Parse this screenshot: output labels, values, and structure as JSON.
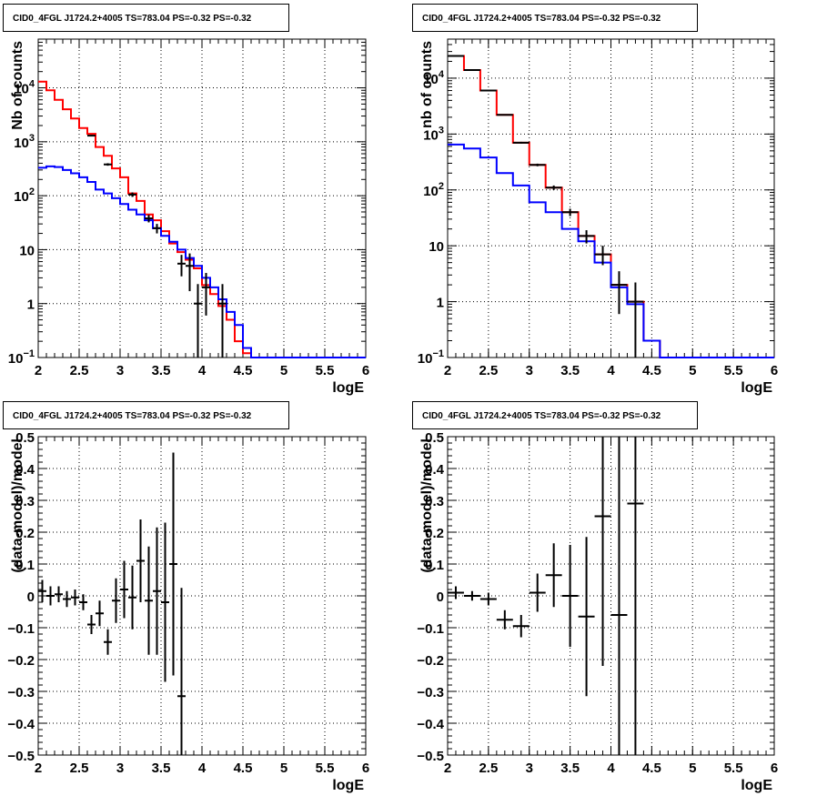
{
  "chart_data": [
    {
      "type": "line",
      "title": "CID0_4FGL J1724.2+4005 TS=783.04 PS=-0.32 PS=-0.32",
      "xlabel": "logE",
      "ylabel": "Nb of counts",
      "xlim": [
        2,
        6
      ],
      "ylim": [
        0.1,
        80000
      ],
      "yscale": "log",
      "grid": true,
      "x_ticks": [
        "2",
        "2.5",
        "3",
        "3.5",
        "4",
        "4.5",
        "5",
        "5.5",
        "6"
      ],
      "y_ticks": [
        {
          "value": 0.1,
          "label": "10^-1"
        },
        {
          "value": 1,
          "label": "1"
        },
        {
          "value": 10,
          "label": "10"
        },
        {
          "value": 100,
          "label": "10^2"
        },
        {
          "value": 1000,
          "label": "10^3"
        },
        {
          "value": 10000,
          "label": "10^4"
        }
      ],
      "bin_edges": [
        2.0,
        2.1,
        2.2,
        2.3,
        2.4,
        2.5,
        2.6,
        2.7,
        2.8,
        2.9,
        3.0,
        3.1,
        3.2,
        3.3,
        3.4,
        3.5,
        3.6,
        3.7,
        3.8,
        3.9,
        4.0,
        4.1,
        4.2,
        4.3,
        4.4,
        4.5,
        4.6,
        4.7,
        4.8,
        4.9,
        5.0,
        5.1,
        5.2,
        5.3,
        5.4,
        5.5,
        5.6,
        5.7,
        5.8,
        5.9,
        6.0
      ],
      "series": [
        {
          "color": "#ff0000",
          "values": [
            13000,
            9000,
            6000,
            4000,
            2700,
            1800,
            1400,
            800,
            550,
            320,
            220,
            110,
            80,
            45,
            35,
            22,
            13,
            9,
            6.5,
            4.5,
            2.2,
            1.5,
            0.9,
            0.5,
            0.2,
            0.12,
            0.1,
            0.1,
            0.1,
            0.1,
            0.1,
            0.1,
            0.1,
            0.1,
            0.1,
            0.1,
            0.1,
            0.1,
            0.1,
            0.1
          ]
        },
        {
          "color": "#0000ff",
          "values": [
            330,
            350,
            340,
            300,
            260,
            220,
            180,
            130,
            110,
            90,
            70,
            55,
            45,
            35,
            25,
            18,
            14,
            10,
            7,
            5,
            3,
            2,
            1.2,
            0.7,
            0.4,
            0.15,
            0.1,
            0.1,
            0.1,
            0.1,
            0.1,
            0.1,
            0.1,
            0.1,
            0.1,
            0.1,
            0.1,
            0.1,
            0.1,
            0.1
          ]
        }
      ],
      "data_points": [
        {
          "x": 2.65,
          "y": 1300,
          "yerr_lo": 40,
          "yerr_hi": 40,
          "xerr": 0.05
        },
        {
          "x": 2.85,
          "y": 380,
          "yerr_lo": 20,
          "yerr_hi": 20,
          "xerr": 0.05
        },
        {
          "x": 3.15,
          "y": 105,
          "yerr_lo": 10,
          "yerr_hi": 10,
          "xerr": 0.05
        },
        {
          "x": 3.35,
          "y": 38,
          "yerr_lo": 6,
          "yerr_hi": 6,
          "xerr": 0.05
        },
        {
          "x": 3.45,
          "y": 25,
          "yerr_lo": 5,
          "yerr_hi": 5,
          "xerr": 0.05
        },
        {
          "x": 3.75,
          "y": 5.5,
          "yerr_lo": 2.3,
          "yerr_hi": 2.5,
          "xerr": 0.05
        },
        {
          "x": 3.85,
          "y": 5,
          "yerr_lo": 3.3,
          "yerr_hi": 3.5,
          "xerr": 0.05
        },
        {
          "x": 3.95,
          "y": 1,
          "yerr_lo": 0.9,
          "yerr_hi": 1.3,
          "xerr": 0.05
        },
        {
          "x": 4.05,
          "y": 2,
          "yerr_lo": 1.4,
          "yerr_hi": 1.7,
          "xerr": 0.05
        },
        {
          "x": 4.25,
          "y": 1,
          "yerr_lo": 0.9,
          "yerr_hi": 1.3,
          "xerr": 0.05
        }
      ]
    },
    {
      "type": "line",
      "title": "CID0_4FGL J1724.2+4005 TS=783.04 PS=-0.32 PS=-0.32",
      "xlabel": "logE",
      "ylabel": "nb of counts",
      "xlim": [
        2,
        6
      ],
      "ylim": [
        0.1,
        50000
      ],
      "yscale": "log",
      "grid": true,
      "x_ticks": [
        "2",
        "2.5",
        "3",
        "3.5",
        "4",
        "4.5",
        "5",
        "5.5",
        "6"
      ],
      "y_ticks": [
        {
          "value": 0.1,
          "label": "10^-1"
        },
        {
          "value": 1,
          "label": "1"
        },
        {
          "value": 10,
          "label": "10"
        },
        {
          "value": 100,
          "label": "10^2"
        },
        {
          "value": 1000,
          "label": "10^3"
        },
        {
          "value": 10000,
          "label": "10^4"
        }
      ],
      "bin_edges": [
        2.0,
        2.2,
        2.4,
        2.6,
        2.8,
        3.0,
        3.2,
        3.4,
        3.6,
        3.8,
        4.0,
        4.2,
        4.4,
        4.6,
        4.8,
        5.0,
        5.2,
        5.4,
        5.6,
        5.8,
        6.0
      ],
      "series": [
        {
          "color": "#ff0000",
          "values": [
            25000,
            14000,
            6000,
            2200,
            700,
            280,
            110,
            40,
            15,
            7,
            2,
            1,
            0.2,
            0.1,
            0.1,
            0.1,
            0.1,
            0.1,
            0.1,
            0.1
          ]
        },
        {
          "color": "#0000ff",
          "values": [
            650,
            550,
            380,
            200,
            120,
            60,
            40,
            20,
            12,
            5,
            1.8,
            0.9,
            0.2,
            0.1,
            0.1,
            0.1,
            0.1,
            0.1,
            0.1,
            0.1
          ]
        }
      ],
      "data_points": [
        {
          "x": 2.1,
          "y": 25000,
          "yerr_lo": 150,
          "yerr_hi": 150,
          "xerr": 0.1
        },
        {
          "x": 2.3,
          "y": 14000,
          "yerr_lo": 120,
          "yerr_hi": 120,
          "xerr": 0.1
        },
        {
          "x": 2.5,
          "y": 6000,
          "yerr_lo": 80,
          "yerr_hi": 80,
          "xerr": 0.1
        },
        {
          "x": 2.7,
          "y": 2200,
          "yerr_lo": 45,
          "yerr_hi": 45,
          "xerr": 0.1
        },
        {
          "x": 2.9,
          "y": 700,
          "yerr_lo": 25,
          "yerr_hi": 25,
          "xerr": 0.1
        },
        {
          "x": 3.1,
          "y": 280,
          "yerr_lo": 15,
          "yerr_hi": 15,
          "xerr": 0.1
        },
        {
          "x": 3.3,
          "y": 110,
          "yerr_lo": 10,
          "yerr_hi": 10,
          "xerr": 0.1
        },
        {
          "x": 3.5,
          "y": 40,
          "yerr_lo": 6,
          "yerr_hi": 6,
          "xerr": 0.1
        },
        {
          "x": 3.7,
          "y": 15,
          "yerr_lo": 4,
          "yerr_hi": 4,
          "xerr": 0.1
        },
        {
          "x": 3.9,
          "y": 7,
          "yerr_lo": 2.5,
          "yerr_hi": 3,
          "xerr": 0.1
        },
        {
          "x": 4.1,
          "y": 2,
          "yerr_lo": 1.4,
          "yerr_hi": 1.5,
          "xerr": 0.1
        },
        {
          "x": 4.3,
          "y": 1,
          "yerr_lo": 0.9,
          "yerr_hi": 1.2,
          "xerr": 0.1
        }
      ]
    },
    {
      "type": "scatter",
      "title": "CID0_4FGL J1724.2+4005 TS=783.04 PS=-0.32 PS=-0.32",
      "xlabel": "logE",
      "ylabel": "(data-model)/model",
      "xlim": [
        2,
        6
      ],
      "ylim": [
        -0.5,
        0.5
      ],
      "grid": true,
      "x_ticks": [
        "2",
        "2.5",
        "3",
        "3.5",
        "4",
        "4.5",
        "5",
        "5.5",
        "6"
      ],
      "y_ticks": [
        "−0.5",
        "−0.4",
        "−0.3",
        "−0.2",
        "−0.1",
        "0",
        "0.1",
        "0.2",
        "0.3",
        "0.4",
        "0.5"
      ],
      "points": [
        {
          "x": 2.05,
          "y": 0.015,
          "yerr": 0.035
        },
        {
          "x": 2.15,
          "y": 0.0,
          "yerr": 0.03
        },
        {
          "x": 2.25,
          "y": 0.005,
          "yerr": 0.025
        },
        {
          "x": 2.35,
          "y": -0.01,
          "yerr": 0.025
        },
        {
          "x": 2.45,
          "y": -0.005,
          "yerr": 0.025
        },
        {
          "x": 2.55,
          "y": -0.02,
          "yerr": 0.025
        },
        {
          "x": 2.65,
          "y": -0.09,
          "yerr": 0.03
        },
        {
          "x": 2.75,
          "y": -0.055,
          "yerr": 0.04
        },
        {
          "x": 2.85,
          "y": -0.145,
          "yerr": 0.04
        },
        {
          "x": 2.95,
          "y": -0.015,
          "yerr": 0.07
        },
        {
          "x": 3.05,
          "y": 0.02,
          "yerr": 0.09
        },
        {
          "x": 3.15,
          "y": -0.005,
          "yerr": 0.1
        },
        {
          "x": 3.25,
          "y": 0.11,
          "yerr": 0.13
        },
        {
          "x": 3.35,
          "y": -0.015,
          "yerr": 0.17
        },
        {
          "x": 3.45,
          "y": 0.015,
          "yerr": 0.2
        },
        {
          "x": 3.55,
          "y": -0.02,
          "yerr": 0.25
        },
        {
          "x": 3.65,
          "y": 0.1,
          "yerr": 0.35
        },
        {
          "x": 3.75,
          "y": -0.315,
          "yerr": 0.34
        }
      ]
    },
    {
      "type": "scatter",
      "title": "CID0_4FGL J1724.2+4005 TS=783.04 PS=-0.32 PS=-0.32",
      "xlabel": "logE",
      "ylabel": "(data-model)/model",
      "xlim": [
        2,
        6
      ],
      "ylim": [
        -0.5,
        0.5
      ],
      "grid": true,
      "x_ticks": [
        "2",
        "2.5",
        "3",
        "3.5",
        "4",
        "4.5",
        "5",
        "5.5",
        "6"
      ],
      "y_ticks": [
        "−0.5",
        "−0.4",
        "−0.3",
        "−0.2",
        "−0.1",
        "0",
        "0.1",
        "0.2",
        "0.3",
        "0.4",
        "0.5"
      ],
      "points": [
        {
          "x": 2.1,
          "y": 0.01,
          "yerr": 0.02
        },
        {
          "x": 2.3,
          "y": 0.0,
          "yerr": 0.015
        },
        {
          "x": 2.5,
          "y": -0.01,
          "yerr": 0.02
        },
        {
          "x": 2.7,
          "y": -0.075,
          "yerr": 0.03
        },
        {
          "x": 2.9,
          "y": -0.095,
          "yerr": 0.035
        },
        {
          "x": 3.1,
          "y": 0.01,
          "yerr": 0.06
        },
        {
          "x": 3.3,
          "y": 0.065,
          "yerr": 0.1
        },
        {
          "x": 3.5,
          "y": 0.0,
          "yerr": 0.16
        },
        {
          "x": 3.7,
          "y": -0.065,
          "yerr": 0.25
        },
        {
          "x": 3.9,
          "y": 0.25,
          "yerr": 0.47
        },
        {
          "x": 4.1,
          "y": -0.06,
          "yerr": 0.6
        },
        {
          "x": 4.3,
          "y": 0.29,
          "yerr": 0.8
        }
      ]
    }
  ]
}
